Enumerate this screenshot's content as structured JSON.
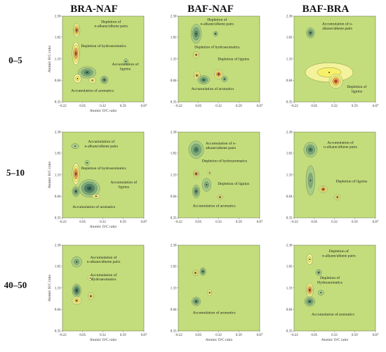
{
  "column_titles": [
    "BRA-NAF",
    "BAF-NAF",
    "BAF-BRA"
  ],
  "row_titles": [
    "0–5",
    "5–10",
    "40–50"
  ],
  "axes": {
    "xlabel": "Atomic O/C ratio",
    "ylabel": "Atomic H/C ratio",
    "xticks": [
      "−0.22",
      "0.05",
      "0.32",
      "0.59",
      "0.87"
    ],
    "yticks": [
      "0.35",
      "0.84",
      "1.33",
      "1.82",
      "2.30"
    ],
    "xlim": [
      -0.22,
      0.87
    ],
    "ylim": [
      0.35,
      2.3
    ]
  },
  "colors": {
    "background": "#c3dd7c",
    "pale_yellow": "#f4f29a",
    "yellow": "#f7f06a",
    "orange": "#f0a25c",
    "red": "#e2553a",
    "light_green": "#a8cc86",
    "green": "#7dab79",
    "dark_green": "#4f8467",
    "teal": "#36615a"
  },
  "chart_data": [
    {
      "type": "contour",
      "row": 0,
      "col": 0,
      "blobs": [
        {
          "x": -0.03,
          "y": 1.98,
          "rx": 0.045,
          "ry": 0.16,
          "sign": "positive",
          "levels": 4
        },
        {
          "x": -0.04,
          "y": 1.45,
          "rx": 0.05,
          "ry": 0.26,
          "sign": "positive",
          "levels": 4
        },
        {
          "x": 0.11,
          "y": 1.02,
          "rx": 0.12,
          "ry": 0.13,
          "sign": "negative",
          "levels": 3
        },
        {
          "x": 0.34,
          "y": 0.85,
          "rx": 0.05,
          "ry": 0.09,
          "sign": "negative",
          "levels": 3
        },
        {
          "x": 0.18,
          "y": 0.84,
          "rx": 0.045,
          "ry": 0.07,
          "sign": "positive",
          "levels": 2
        },
        {
          "x": -0.02,
          "y": 0.88,
          "rx": 0.05,
          "ry": 0.1,
          "sign": "positive",
          "levels": 2
        },
        {
          "x": 0.63,
          "y": 1.27,
          "rx": 0.03,
          "ry": 0.06,
          "sign": "negative",
          "levels": 1
        }
      ],
      "annotations": [
        {
          "text": [
            "Depletion of",
            "n-alkane/alkene pairs"
          ],
          "x": 0.43,
          "y": 2.15
        },
        {
          "text": [
            "Depletion of hydroaromatics"
          ],
          "x": 0.33,
          "y": 1.6
        },
        {
          "text": [
            "Accumulation of",
            "lignins"
          ],
          "x": 0.62,
          "y": 1.18
        },
        {
          "text": [
            "Accumulation of aromatics"
          ],
          "x": 0.18,
          "y": 0.58
        }
      ]
    },
    {
      "type": "contour",
      "row": 0,
      "col": 1,
      "blobs": [
        {
          "x": 0.02,
          "y": 1.9,
          "rx": 0.07,
          "ry": 0.22,
          "sign": "negative",
          "levels": 3
        },
        {
          "x": 0.28,
          "y": 1.9,
          "rx": 0.03,
          "ry": 0.06,
          "sign": "negative",
          "levels": 2
        },
        {
          "x": 0.02,
          "y": 1.42,
          "rx": 0.04,
          "ry": 0.08,
          "sign": "positive",
          "levels": 3
        },
        {
          "x": 0.03,
          "y": 0.95,
          "rx": 0.045,
          "ry": 0.1,
          "sign": "positive",
          "levels": 3
        },
        {
          "x": 0.12,
          "y": 0.85,
          "rx": 0.08,
          "ry": 0.1,
          "sign": "negative",
          "levels": 3
        },
        {
          "x": 0.32,
          "y": 0.98,
          "rx": 0.06,
          "ry": 0.11,
          "sign": "positive",
          "levels": 4
        },
        {
          "x": 0.4,
          "y": 0.87,
          "rx": 0.04,
          "ry": 0.07,
          "sign": "negative",
          "levels": 2
        }
      ],
      "annotations": [
        {
          "text": [
            "Depletion of",
            "n-alkane/alkene pairs"
          ],
          "x": 0.3,
          "y": 2.2
        },
        {
          "text": [
            "Depletion of hydroaromatics"
          ],
          "x": 0.3,
          "y": 1.57
        },
        {
          "text": [
            "Depletion of lignins"
          ],
          "x": 0.52,
          "y": 1.3
        },
        {
          "text": [
            "Accumulation of aromatics"
          ],
          "x": 0.24,
          "y": 0.62
        }
      ]
    },
    {
      "type": "contour",
      "row": 0,
      "col": 2,
      "blobs": [
        {
          "x": 0.0,
          "y": 1.92,
          "rx": 0.055,
          "ry": 0.12,
          "sign": "negative",
          "levels": 3
        },
        {
          "x": 0.25,
          "y": 1.02,
          "rx": 0.32,
          "ry": 0.22,
          "sign": "positive",
          "levels": 2
        },
        {
          "x": 0.34,
          "y": 0.82,
          "rx": 0.09,
          "ry": 0.16,
          "sign": "positive",
          "levels": 4
        }
      ],
      "annotations": [
        {
          "text": [
            "Accumulation of n-",
            "alkane/alkene pairs"
          ],
          "x": 0.36,
          "y": 2.1
        },
        {
          "text": [
            "Depletion of",
            "lignins"
          ],
          "x": 0.62,
          "y": 0.67
        }
      ]
    },
    {
      "type": "contour",
      "row": 1,
      "col": 0,
      "blobs": [
        {
          "x": -0.05,
          "y": 1.98,
          "rx": 0.05,
          "ry": 0.06,
          "sign": "negative",
          "levels": 1
        },
        {
          "x": -0.04,
          "y": 1.35,
          "rx": 0.05,
          "ry": 0.24,
          "sign": "positive",
          "levels": 4
        },
        {
          "x": -0.04,
          "y": 0.95,
          "rx": 0.05,
          "ry": 0.12,
          "sign": "negative",
          "levels": 3
        },
        {
          "x": 0.14,
          "y": 1.02,
          "rx": 0.14,
          "ry": 0.2,
          "sign": "negative",
          "levels": 4
        },
        {
          "x": 0.23,
          "y": 0.84,
          "rx": 0.05,
          "ry": 0.05,
          "sign": "positive",
          "levels": 2
        },
        {
          "x": 0.11,
          "y": 1.6,
          "rx": 0.03,
          "ry": 0.06,
          "sign": "negative",
          "levels": 1
        }
      ],
      "annotations": [
        {
          "text": [
            "Accumulation of",
            "n-alkane/alkene pairs"
          ],
          "x": 0.3,
          "y": 2.06
        },
        {
          "text": [
            "Depletion of hydroaromatics"
          ],
          "x": 0.33,
          "y": 1.45
        },
        {
          "text": [
            "Accumulation of",
            "lignins"
          ],
          "x": 0.6,
          "y": 1.13
        },
        {
          "text": [
            "Accumulation of aromatics"
          ],
          "x": 0.2,
          "y": 0.57
        }
      ]
    },
    {
      "type": "contour",
      "row": 1,
      "col": 1,
      "blobs": [
        {
          "x": 0.02,
          "y": 1.9,
          "rx": 0.1,
          "ry": 0.2,
          "sign": "negative",
          "levels": 3
        },
        {
          "x": 0.02,
          "y": 1.35,
          "rx": 0.035,
          "ry": 0.1,
          "sign": "positive",
          "levels": 4
        },
        {
          "x": 0.02,
          "y": 0.95,
          "rx": 0.05,
          "ry": 0.15,
          "sign": "negative",
          "levels": 3
        },
        {
          "x": 0.16,
          "y": 1.1,
          "rx": 0.06,
          "ry": 0.15,
          "sign": "negative",
          "levels": 2
        },
        {
          "x": 0.34,
          "y": 0.82,
          "rx": 0.035,
          "ry": 0.06,
          "sign": "positive",
          "levels": 3
        },
        {
          "x": 0.2,
          "y": 1.37,
          "rx": 0.02,
          "ry": 0.04,
          "sign": "positive",
          "levels": 1
        }
      ],
      "annotations": [
        {
          "text": [
            "Accumulation of n-",
            "alkane/alkene pairs"
          ],
          "x": 0.35,
          "y": 2.02
        },
        {
          "text": [
            "Depletion of hydroaromatics"
          ],
          "x": 0.4,
          "y": 1.62
        },
        {
          "text": [
            "Depletion of lignins"
          ],
          "x": 0.52,
          "y": 1.1
        },
        {
          "text": [
            "Accumulation of aromatics"
          ],
          "x": 0.26,
          "y": 0.6
        }
      ]
    },
    {
      "type": "contour",
      "row": 1,
      "col": 2,
      "blobs": [
        {
          "x": 0.0,
          "y": 1.9,
          "rx": 0.09,
          "ry": 0.17,
          "sign": "negative",
          "levels": 3
        },
        {
          "x": 0.0,
          "y": 1.2,
          "rx": 0.06,
          "ry": 0.34,
          "sign": "negative",
          "levels": 2
        },
        {
          "x": 0.17,
          "y": 1.0,
          "rx": 0.06,
          "ry": 0.08,
          "sign": "positive",
          "levels": 4
        },
        {
          "x": 0.36,
          "y": 0.82,
          "rx": 0.04,
          "ry": 0.06,
          "sign": "positive",
          "levels": 3
        }
      ],
      "annotations": [
        {
          "text": [
            "Accumulation of",
            "n-alkane/alkene pairs"
          ],
          "x": 0.4,
          "y": 2.04
        },
        {
          "text": [
            "Depletion of lignins"
          ],
          "x": 0.55,
          "y": 1.16
        }
      ]
    },
    {
      "type": "contour",
      "row": 2,
      "col": 0,
      "blobs": [
        {
          "x": -0.03,
          "y": 1.92,
          "rx": 0.07,
          "ry": 0.12,
          "sign": "negative",
          "levels": 2
        },
        {
          "x": -0.03,
          "y": 1.27,
          "rx": 0.06,
          "ry": 0.15,
          "sign": "negative",
          "levels": 4
        },
        {
          "x": -0.03,
          "y": 1.04,
          "rx": 0.06,
          "ry": 0.09,
          "sign": "positive",
          "levels": 3
        },
        {
          "x": 0.16,
          "y": 1.14,
          "rx": 0.04,
          "ry": 0.08,
          "sign": "positive",
          "levels": 3
        },
        {
          "x": 0.15,
          "y": 1.55,
          "rx": 0.03,
          "ry": 0.05,
          "sign": "positive",
          "levels": 1
        }
      ],
      "annotations": [
        {
          "text": [
            "Accumulation of",
            "n-alkane/alkene pairs"
          ],
          "x": 0.33,
          "y": 2.0
        },
        {
          "text": [
            "Accumulation of",
            "Hydroaromatics"
          ],
          "x": 0.33,
          "y": 1.6
        }
      ]
    },
    {
      "type": "contour",
      "row": 2,
      "col": 1,
      "blobs": [
        {
          "x": 0.01,
          "y": 1.67,
          "rx": 0.035,
          "ry": 0.07,
          "sign": "positive",
          "levels": 3
        },
        {
          "x": 0.11,
          "y": 1.7,
          "rx": 0.04,
          "ry": 0.09,
          "sign": "negative",
          "levels": 3
        },
        {
          "x": 0.2,
          "y": 1.22,
          "rx": 0.03,
          "ry": 0.07,
          "sign": "positive",
          "levels": 2
        },
        {
          "x": 0.02,
          "y": 1.02,
          "rx": 0.06,
          "ry": 0.1,
          "sign": "negative",
          "levels": 3
        }
      ],
      "annotations": [
        {
          "text": [
            "Accumulation of aromatics"
          ],
          "x": 0.26,
          "y": 0.74
        }
      ]
    },
    {
      "type": "contour",
      "row": 2,
      "col": 2,
      "blobs": [
        {
          "x": -0.01,
          "y": 1.98,
          "rx": 0.04,
          "ry": 0.12,
          "sign": "positive",
          "levels": 2
        },
        {
          "x": -0.01,
          "y": 1.28,
          "rx": 0.05,
          "ry": 0.16,
          "sign": "positive",
          "levels": 4
        },
        {
          "x": -0.01,
          "y": 1.02,
          "rx": 0.07,
          "ry": 0.11,
          "sign": "negative",
          "levels": 3
        },
        {
          "x": 0.11,
          "y": 1.68,
          "rx": 0.04,
          "ry": 0.07,
          "sign": "negative",
          "levels": 2
        },
        {
          "x": 0.14,
          "y": 1.22,
          "rx": 0.04,
          "ry": 0.06,
          "sign": "negative",
          "levels": 1
        }
      ],
      "annotations": [
        {
          "text": [
            "Depletion of",
            "n-alkane/alkene pairs"
          ],
          "x": 0.38,
          "y": 2.14
        },
        {
          "text": [
            "Depletion of",
            "Hydroaromatics"
          ],
          "x": 0.26,
          "y": 1.53
        },
        {
          "text": [
            "Accumulation of aromatics"
          ],
          "x": 0.3,
          "y": 0.7
        }
      ]
    }
  ]
}
